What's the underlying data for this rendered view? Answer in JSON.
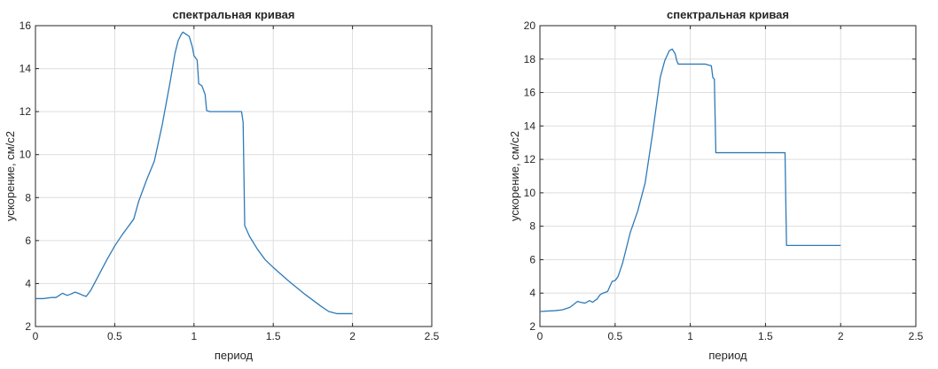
{
  "chart_data": [
    {
      "type": "line",
      "title": "спектральная кривая",
      "xlabel": "период",
      "ylabel": "ускорение, см/с2",
      "xlim": [
        0,
        2.5
      ],
      "ylim": [
        2,
        16
      ],
      "xticks": [
        0,
        0.5,
        1,
        1.5,
        2,
        2.5
      ],
      "xtick_labels": [
        "0",
        "0.5",
        "1",
        "1.5",
        "2",
        "2.5"
      ],
      "yticks": [
        2,
        4,
        6,
        8,
        10,
        12,
        14,
        16
      ],
      "ytick_labels": [
        "2",
        "4",
        "6",
        "8",
        "10",
        "12",
        "14",
        "16"
      ],
      "grid": true,
      "series": [
        {
          "color": "#2e7ab8",
          "x": [
            0,
            0.05,
            0.1,
            0.13,
            0.15,
            0.17,
            0.2,
            0.22,
            0.25,
            0.27,
            0.3,
            0.32,
            0.35,
            0.4,
            0.45,
            0.5,
            0.55,
            0.6,
            0.62,
            0.65,
            0.7,
            0.75,
            0.8,
            0.85,
            0.88,
            0.9,
            0.92,
            0.93,
            0.95,
            0.97,
            0.99,
            1.0,
            1.02,
            1.03,
            1.05,
            1.07,
            1.08,
            1.1,
            1.2,
            1.3,
            1.31,
            1.32,
            1.35,
            1.4,
            1.45,
            1.5,
            1.6,
            1.7,
            1.8,
            1.85,
            1.9,
            2.0
          ],
          "y": [
            3.3,
            3.3,
            3.35,
            3.35,
            3.45,
            3.55,
            3.45,
            3.5,
            3.6,
            3.55,
            3.45,
            3.4,
            3.7,
            4.4,
            5.1,
            5.75,
            6.3,
            6.8,
            7.0,
            7.8,
            8.8,
            9.7,
            11.4,
            13.4,
            14.7,
            15.3,
            15.6,
            15.7,
            15.6,
            15.5,
            15.0,
            14.6,
            14.4,
            13.3,
            13.2,
            12.8,
            12.05,
            12.0,
            12.0,
            12.0,
            11.5,
            6.7,
            6.2,
            5.6,
            5.1,
            4.75,
            4.1,
            3.5,
            2.95,
            2.7,
            2.6,
            2.6
          ]
        }
      ]
    },
    {
      "type": "line",
      "title": "спектральная кривая",
      "xlabel": "период",
      "ylabel": "ускорение, см/с2",
      "xlim": [
        0,
        2.5
      ],
      "ylim": [
        2,
        20
      ],
      "xticks": [
        0,
        0.5,
        1,
        1.5,
        2,
        2.5
      ],
      "xtick_labels": [
        "0",
        "0.5",
        "1",
        "1.5",
        "2",
        "2.5"
      ],
      "yticks": [
        2,
        4,
        6,
        8,
        10,
        12,
        14,
        16,
        18,
        20
      ],
      "ytick_labels": [
        "2",
        "4",
        "6",
        "8",
        "10",
        "12",
        "14",
        "16",
        "18",
        "20"
      ],
      "grid": true,
      "series": [
        {
          "color": "#2e7ab8",
          "x": [
            0,
            0.1,
            0.15,
            0.2,
            0.25,
            0.27,
            0.3,
            0.33,
            0.35,
            0.38,
            0.4,
            0.42,
            0.45,
            0.48,
            0.5,
            0.52,
            0.55,
            0.6,
            0.65,
            0.7,
            0.75,
            0.8,
            0.83,
            0.86,
            0.88,
            0.9,
            0.91,
            0.92,
            0.95,
            1.0,
            1.05,
            1.1,
            1.14,
            1.15,
            1.16,
            1.17,
            1.2,
            1.3,
            1.4,
            1.5,
            1.6,
            1.63,
            1.64,
            1.7,
            1.8,
            1.9,
            2.0
          ],
          "y": [
            2.9,
            2.95,
            3.0,
            3.15,
            3.5,
            3.45,
            3.4,
            3.55,
            3.45,
            3.65,
            3.9,
            4.0,
            4.1,
            4.7,
            4.75,
            5.0,
            5.8,
            7.6,
            8.9,
            10.6,
            13.6,
            16.9,
            17.9,
            18.5,
            18.6,
            18.3,
            17.9,
            17.7,
            17.7,
            17.7,
            17.7,
            17.7,
            17.6,
            16.9,
            16.8,
            12.4,
            12.4,
            12.4,
            12.4,
            12.4,
            12.4,
            12.4,
            6.85,
            6.85,
            6.85,
            6.85,
            6.85
          ]
        }
      ]
    }
  ]
}
